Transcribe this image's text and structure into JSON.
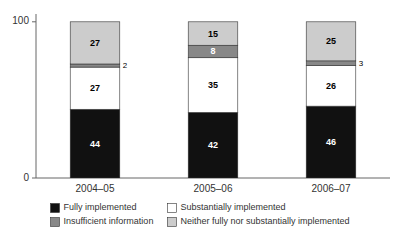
{
  "chart_data": {
    "type": "bar",
    "stacked": true,
    "data_labels": true,
    "grid": false,
    "categories": [
      "2004–05",
      "2005–06",
      "2006–07"
    ],
    "series": [
      {
        "name": "Fully implemented",
        "color": "#111111",
        "values": [
          44,
          42,
          46
        ]
      },
      {
        "name": "Substantially implemented",
        "color": "#ffffff",
        "values": [
          27,
          35,
          26
        ]
      },
      {
        "name": "Insufficient information",
        "color": "#888888",
        "values": [
          2,
          8,
          3
        ]
      },
      {
        "name": "Neither fully nor substantially implemented",
        "color": "#cccccc",
        "values": [
          27,
          15,
          25
        ]
      }
    ],
    "ylim": [
      0,
      105
    ],
    "yticks": [
      0,
      100
    ]
  }
}
